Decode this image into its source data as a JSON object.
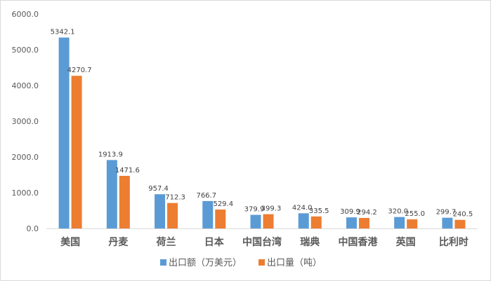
{
  "chart_data": {
    "type": "bar",
    "title": "",
    "xlabel": "",
    "ylabel": "",
    "ylim": [
      0,
      6000
    ],
    "yticks": [
      "0.0",
      "1000.0",
      "2000.0",
      "3000.0",
      "4000.0",
      "5000.0",
      "6000.0"
    ],
    "grid": false,
    "legend_position": "bottom",
    "categories": [
      "美国",
      "丹麦",
      "荷兰",
      "日本",
      "中国台湾",
      "瑞典",
      "中国香港",
      "英国",
      "比利时"
    ],
    "series": [
      {
        "name": "出口额（万美元）",
        "color": "#5b9bd5",
        "values": [
          5342.1,
          1913.9,
          957.4,
          766.7,
          379.9,
          424.0,
          309.9,
          320.0,
          299.7
        ],
        "labels": [
          "5342.1",
          "1913.9",
          "957.4",
          "766.7",
          "379.9",
          "424.0",
          "309.9",
          "320.0",
          "299.7"
        ]
      },
      {
        "name": "出口量（吨）",
        "color": "#ed7d31",
        "values": [
          4270.7,
          1471.6,
          712.3,
          529.4,
          399.3,
          335.5,
          294.2,
          255.0,
          240.5
        ],
        "labels": [
          "4270.7",
          "1471.6",
          "712.3",
          "529.4",
          "399.3",
          "335.5",
          "294.2",
          "255.0",
          "240.5"
        ]
      }
    ]
  }
}
